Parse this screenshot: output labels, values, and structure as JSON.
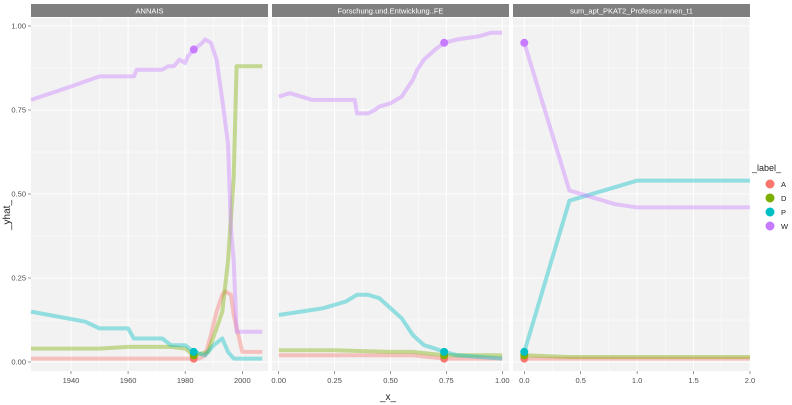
{
  "chart_data": {
    "type": "line",
    "xlabel": "_x_",
    "ylabel": "_yhat_",
    "ylim": [
      0,
      1
    ],
    "yticks": [
      0.0,
      0.25,
      0.5,
      0.75,
      1.0
    ],
    "ytick_labels": [
      "0.00",
      "0.25",
      "0.50",
      "0.75",
      "1.00"
    ],
    "grid": true,
    "legend": {
      "title": "_label_",
      "position": "right",
      "entries": [
        {
          "label": "A",
          "color": "#F8766D"
        },
        {
          "label": "D",
          "color": "#7CAE00"
        },
        {
          "label": "P",
          "color": "#00BFC4"
        },
        {
          "label": "W",
          "color": "#C77CFF"
        }
      ]
    },
    "panels": [
      {
        "title": "ANNAIS",
        "xlim": [
          1926,
          2009
        ],
        "xticks": [
          1940,
          1960,
          1980,
          2000
        ],
        "xtick_labels": [
          "1940",
          "1960",
          "1980",
          "2000"
        ],
        "observation_x": 1983,
        "series": [
          {
            "label": "A",
            "x": [
              1926,
              1950,
              1960,
              1975,
              1983,
              1985,
              1987,
              1989,
              1991,
              1993,
              1994,
              1996,
              1997,
              2000,
              2007
            ],
            "y": [
              0.01,
              0.01,
              0.01,
              0.01,
              0.01,
              0.01,
              0.02,
              0.08,
              0.15,
              0.2,
              0.21,
              0.2,
              0.14,
              0.03,
              0.03
            ]
          },
          {
            "label": "D",
            "x": [
              1926,
              1950,
              1960,
              1975,
              1980,
              1983,
              1988,
              1991,
              1993,
              1995,
              1997,
              1998,
              2007
            ],
            "y": [
              0.04,
              0.04,
              0.045,
              0.045,
              0.04,
              0.02,
              0.03,
              0.1,
              0.15,
              0.3,
              0.55,
              0.88,
              0.88
            ]
          },
          {
            "label": "P",
            "x": [
              1926,
              1945,
              1950,
              1960,
              1962,
              1972,
              1975,
              1980,
              1983,
              1987,
              1990,
              1993,
              1995,
              1997,
              2000,
              2007
            ],
            "y": [
              0.15,
              0.12,
              0.1,
              0.1,
              0.07,
              0.07,
              0.05,
              0.05,
              0.03,
              0.02,
              0.05,
              0.07,
              0.03,
              0.01,
              0.01,
              0.01
            ]
          },
          {
            "label": "W",
            "x": [
              1926,
              1940,
              1950,
              1962,
              1963,
              1972,
              1974,
              1976,
              1978,
              1980,
              1981,
              1983,
              1986,
              1987,
              1989,
              1991,
              1993,
              1995,
              1996,
              1997,
              1998,
              2000,
              2007
            ],
            "y": [
              0.78,
              0.82,
              0.85,
              0.85,
              0.87,
              0.87,
              0.88,
              0.88,
              0.9,
              0.89,
              0.91,
              0.93,
              0.95,
              0.96,
              0.95,
              0.9,
              0.78,
              0.65,
              0.4,
              0.3,
              0.09,
              0.09,
              0.09
            ]
          }
        ]
      },
      {
        "title": "Forschung.und.Entwicklung..FE",
        "xlim": [
          -0.03,
          1.03
        ],
        "xticks": [
          0.0,
          0.25,
          0.5,
          0.75,
          1.0
        ],
        "xtick_labels": [
          "0.00",
          "0.25",
          "0.50",
          "0.75",
          "1.00"
        ],
        "observation_x": 0.74,
        "series": [
          {
            "label": "A",
            "x": [
              0.0,
              0.25,
              0.5,
              0.6,
              0.74,
              1.0
            ],
            "y": [
              0.02,
              0.02,
              0.02,
              0.02,
              0.01,
              0.01
            ]
          },
          {
            "label": "D",
            "x": [
              0.0,
              0.25,
              0.5,
              0.6,
              0.74,
              1.0
            ],
            "y": [
              0.035,
              0.035,
              0.03,
              0.03,
              0.02,
              0.02
            ]
          },
          {
            "label": "P",
            "x": [
              0.0,
              0.05,
              0.1,
              0.2,
              0.3,
              0.35,
              0.4,
              0.45,
              0.5,
              0.55,
              0.6,
              0.65,
              0.7,
              0.74,
              0.8,
              1.0
            ],
            "y": [
              0.14,
              0.145,
              0.15,
              0.16,
              0.18,
              0.2,
              0.2,
              0.19,
              0.16,
              0.13,
              0.08,
              0.05,
              0.04,
              0.03,
              0.02,
              0.01
            ]
          },
          {
            "label": "W",
            "x": [
              0.0,
              0.05,
              0.1,
              0.15,
              0.25,
              0.32,
              0.34,
              0.35,
              0.4,
              0.43,
              0.45,
              0.5,
              0.55,
              0.58,
              0.6,
              0.62,
              0.65,
              0.7,
              0.74,
              0.8,
              0.9,
              0.95,
              1.0
            ],
            "y": [
              0.79,
              0.8,
              0.79,
              0.78,
              0.78,
              0.78,
              0.78,
              0.74,
              0.74,
              0.75,
              0.76,
              0.77,
              0.79,
              0.82,
              0.84,
              0.87,
              0.9,
              0.93,
              0.95,
              0.96,
              0.97,
              0.98,
              0.98
            ]
          }
        ]
      },
      {
        "title": "sum_apt_PKAT2_Professor.innen_t1",
        "xlim": [
          -0.1,
          2.0
        ],
        "xticks": [
          0.0,
          0.5,
          1.0,
          1.5,
          2.0
        ],
        "xtick_labels": [
          "0.0",
          "0.5",
          "1.0",
          "1.5",
          "2.0"
        ],
        "observation_x": 0.0,
        "series": [
          {
            "label": "A",
            "x": [
              0.0,
              0.4,
              1.0,
              2.0
            ],
            "y": [
              0.01,
              0.01,
              0.01,
              0.01
            ]
          },
          {
            "label": "D",
            "x": [
              0.0,
              0.4,
              1.0,
              2.0
            ],
            "y": [
              0.02,
              0.015,
              0.015,
              0.015
            ]
          },
          {
            "label": "P",
            "x": [
              0.0,
              0.4,
              0.8,
              1.0,
              2.0
            ],
            "y": [
              0.03,
              0.48,
              0.52,
              0.54,
              0.54
            ]
          },
          {
            "label": "W",
            "x": [
              0.0,
              0.4,
              0.8,
              1.0,
              2.0
            ],
            "y": [
              0.95,
              0.51,
              0.47,
              0.46,
              0.46
            ]
          }
        ]
      }
    ]
  }
}
